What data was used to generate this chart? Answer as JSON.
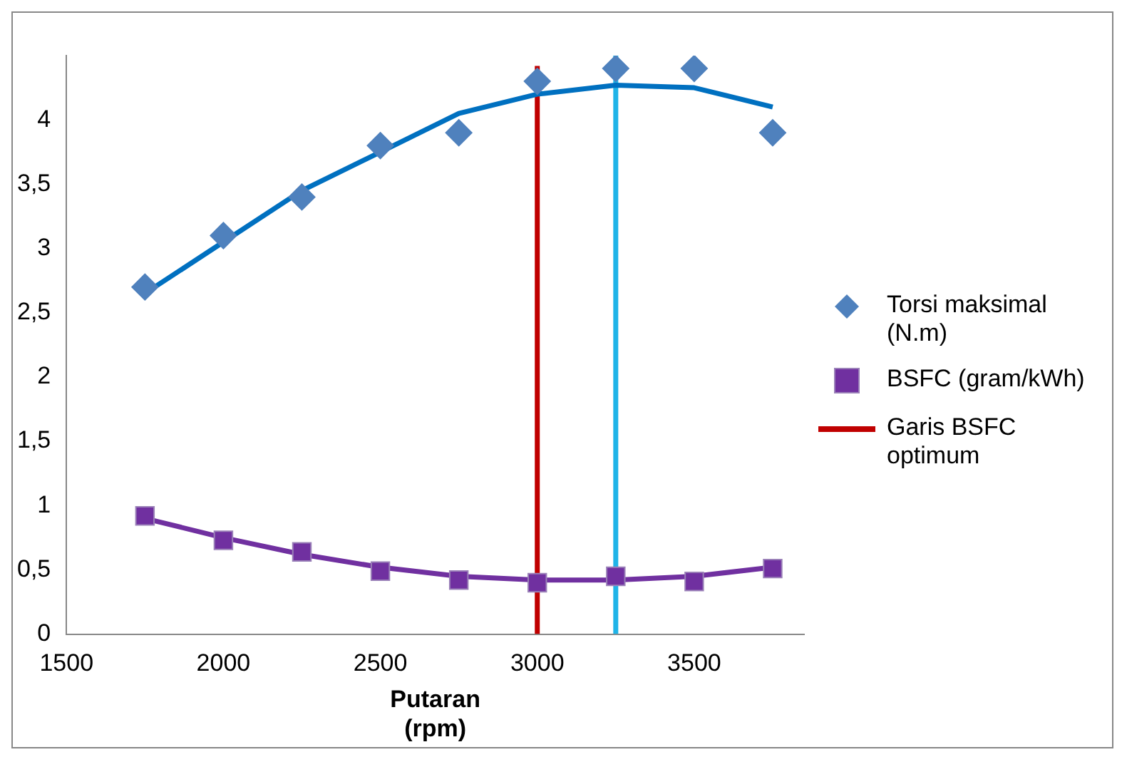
{
  "chart_data": {
    "type": "scatter",
    "xlabel": "Putaran (rpm)",
    "xlim": [
      1500,
      3850
    ],
    "xticks": [
      1500,
      2000,
      2500,
      3000,
      3500
    ],
    "ylim": [
      0,
      4.5
    ],
    "yticks": [
      {
        "value": 0,
        "label": "0"
      },
      {
        "value": 0.5,
        "label": "0,5"
      },
      {
        "value": 1,
        "label": "1"
      },
      {
        "value": 1.5,
        "label": "1,5"
      },
      {
        "value": 2,
        "label": "2"
      },
      {
        "value": 2.5,
        "label": "2,5"
      },
      {
        "value": 3,
        "label": "3"
      },
      {
        "value": 3.5,
        "label": "3,5"
      },
      {
        "value": 4,
        "label": "4"
      }
    ],
    "grid": false,
    "legend": "right",
    "series": [
      {
        "name": "Torsi maksimal (N.m)",
        "marker": "diamond",
        "color": "#4f81bd",
        "x": [
          1750,
          2000,
          2250,
          2500,
          2750,
          3000,
          3250,
          3500,
          3750
        ],
        "values": [
          2.7,
          3.1,
          3.4,
          3.8,
          3.9,
          4.3,
          4.4,
          4.4,
          3.9
        ]
      },
      {
        "name": "BSFC (gram/kWh)",
        "marker": "square",
        "color": "#7030a0",
        "x": [
          1750,
          2000,
          2250,
          2500,
          2750,
          3000,
          3250,
          3500,
          3750
        ],
        "values": [
          0.92,
          0.73,
          0.64,
          0.49,
          0.42,
          0.4,
          0.45,
          0.41,
          0.51
        ]
      },
      {
        "type": "line",
        "marker": "none",
        "color": "#0070c0",
        "x": [
          1750,
          2000,
          2250,
          2500,
          2750,
          3000,
          3250,
          3500,
          3750
        ],
        "values": [
          2.65,
          3.05,
          3.45,
          3.75,
          4.05,
          4.2,
          4.27,
          4.25,
          4.1
        ]
      },
      {
        "type": "line",
        "marker": "none",
        "color": "#7030a0",
        "x": [
          1750,
          2000,
          2250,
          2500,
          2750,
          3000,
          3250,
          3500,
          3750
        ],
        "values": [
          0.9,
          0.75,
          0.62,
          0.52,
          0.45,
          0.42,
          0.42,
          0.45,
          0.52
        ]
      },
      {
        "name": "Garis BSFC optimum",
        "type": "line",
        "marker": "none",
        "color": "#c00000",
        "x": [
          3000,
          3000
        ],
        "values": [
          0,
          4.42
        ]
      },
      {
        "type": "line",
        "marker": "none",
        "color": "#1fb4e8",
        "x": [
          3250,
          3250
        ],
        "values": [
          0,
          4.5
        ]
      }
    ]
  }
}
